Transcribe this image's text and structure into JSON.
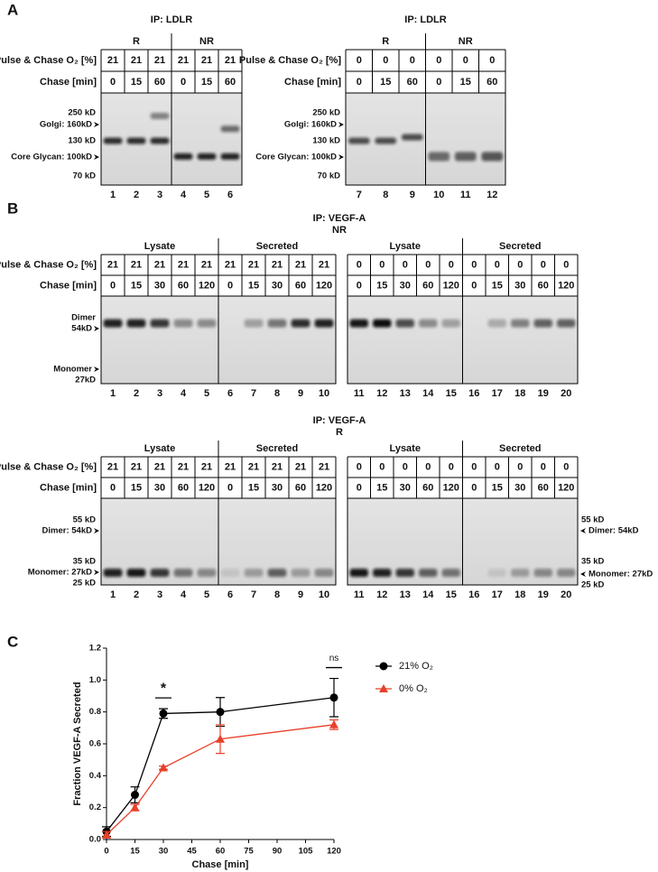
{
  "panel_a": {
    "label": "A",
    "gels": [
      {
        "title": "IP: LDLR",
        "groups": [
          "R",
          "NR"
        ],
        "row_labels": [
          "Pulse & Chase O₂ [%]",
          "Chase [min]"
        ],
        "o2": [
          21,
          21,
          21,
          21,
          21,
          21
        ],
        "chase": [
          0,
          15,
          60,
          0,
          15,
          60
        ],
        "markers": [
          "250 kD",
          "Golgi: 160kD",
          "130 kD",
          "Core Glycan: 100kD",
          "70 kD"
        ],
        "lanes": [
          1,
          2,
          3,
          4,
          5,
          6
        ]
      },
      {
        "title": "IP: LDLR",
        "groups": [
          "R",
          "NR"
        ],
        "row_labels": [
          "Pulse & Chase O₂ [%]",
          "Chase [min]"
        ],
        "o2": [
          0,
          0,
          0,
          0,
          0,
          0
        ],
        "chase": [
          0,
          15,
          60,
          0,
          15,
          60
        ],
        "markers": [
          "250 kD",
          "Golgi: 160kD",
          "130 kD",
          "Core Glycan: 100kD",
          "70 kD"
        ],
        "lanes": [
          7,
          8,
          9,
          10,
          11,
          12
        ]
      }
    ]
  },
  "panel_b": {
    "label": "B",
    "blocks": [
      {
        "title": "IP: VEGF-A",
        "subtitle": "NR",
        "gels": [
          {
            "groups": [
              "Lysate",
              "Secreted"
            ],
            "row_labels": [
              "Pulse & Chase O₂ [%]",
              "Chase [min]"
            ],
            "o2": [
              21,
              21,
              21,
              21,
              21,
              21,
              21,
              21,
              21,
              21
            ],
            "chase": [
              0,
              15,
              30,
              60,
              120,
              0,
              15,
              30,
              60,
              120
            ],
            "markers": [
              "Dimer",
              "54kD",
              "Monomer",
              "27kD"
            ],
            "lanes": [
              1,
              2,
              3,
              4,
              5,
              6,
              7,
              8,
              9,
              10
            ]
          },
          {
            "groups": [
              "Lysate",
              "Secreted"
            ],
            "o2": [
              0,
              0,
              0,
              0,
              0,
              0,
              0,
              0,
              0,
              0
            ],
            "chase": [
              0,
              15,
              30,
              60,
              120,
              0,
              15,
              30,
              60,
              120
            ],
            "lanes": [
              11,
              12,
              13,
              14,
              15,
              16,
              17,
              18,
              19,
              20
            ]
          }
        ]
      },
      {
        "title": "IP: VEGF-A",
        "subtitle": "R",
        "gels": [
          {
            "groups": [
              "Lysate",
              "Secreted"
            ],
            "row_labels": [
              "Pulse & Chase O₂ [%]",
              "Chase [min]"
            ],
            "o2": [
              21,
              21,
              21,
              21,
              21,
              21,
              21,
              21,
              21,
              21
            ],
            "chase": [
              0,
              15,
              30,
              60,
              120,
              0,
              15,
              30,
              60,
              120
            ],
            "markers": [
              "55 kD",
              "Dimer: 54kD",
              "35 kD",
              "Monomer: 27kD",
              "25 kD"
            ],
            "lanes": [
              1,
              2,
              3,
              4,
              5,
              6,
              7,
              8,
              9,
              10
            ]
          },
          {
            "groups": [
              "Lysate",
              "Secreted"
            ],
            "o2": [
              0,
              0,
              0,
              0,
              0,
              0,
              0,
              0,
              0,
              0
            ],
            "chase": [
              0,
              15,
              30,
              60,
              120,
              0,
              15,
              30,
              60,
              120
            ],
            "markers": [
              "55 kD",
              "Dimer: 54kD",
              "35 kD",
              "Monomer: 27kD",
              "25 kD"
            ],
            "lanes": [
              11,
              12,
              13,
              14,
              15,
              16,
              17,
              18,
              19,
              20
            ]
          }
        ]
      }
    ]
  },
  "panel_c": {
    "label": "C"
  },
  "chart_data": {
    "type": "line",
    "x_label": "Chase [min]",
    "y_label": "Fraction VEGF-A Secreted",
    "x": [
      0,
      15,
      30,
      60,
      120
    ],
    "series": [
      {
        "name": "21% O₂",
        "color": "#000000",
        "marker": "circle",
        "values": [
          0.05,
          0.28,
          0.79,
          0.8,
          0.89
        ],
        "errors": [
          0.03,
          0.05,
          0.03,
          0.09,
          0.12
        ]
      },
      {
        "name": "0% O₂",
        "color": "#e8402a",
        "marker": "triangle",
        "values": [
          0.03,
          0.2,
          0.45,
          0.63,
          0.72
        ],
        "errors": [
          0.02,
          0.02,
          0.01,
          0.09,
          0.03
        ]
      }
    ],
    "xlim": [
      0,
      120
    ],
    "xticks": [
      0,
      15,
      30,
      45,
      60,
      75,
      90,
      105,
      120
    ],
    "ylim": [
      0,
      1.2
    ],
    "yticks": [
      {
        "value": 0,
        "label": "0.0"
      },
      0.2,
      0.4,
      0.6,
      0.8,
      {
        "value": 1,
        "label": "1.0"
      },
      1.2
    ],
    "annotations": [
      {
        "x": 30,
        "text": "*"
      },
      {
        "x": 120,
        "text": "ns"
      }
    ]
  }
}
